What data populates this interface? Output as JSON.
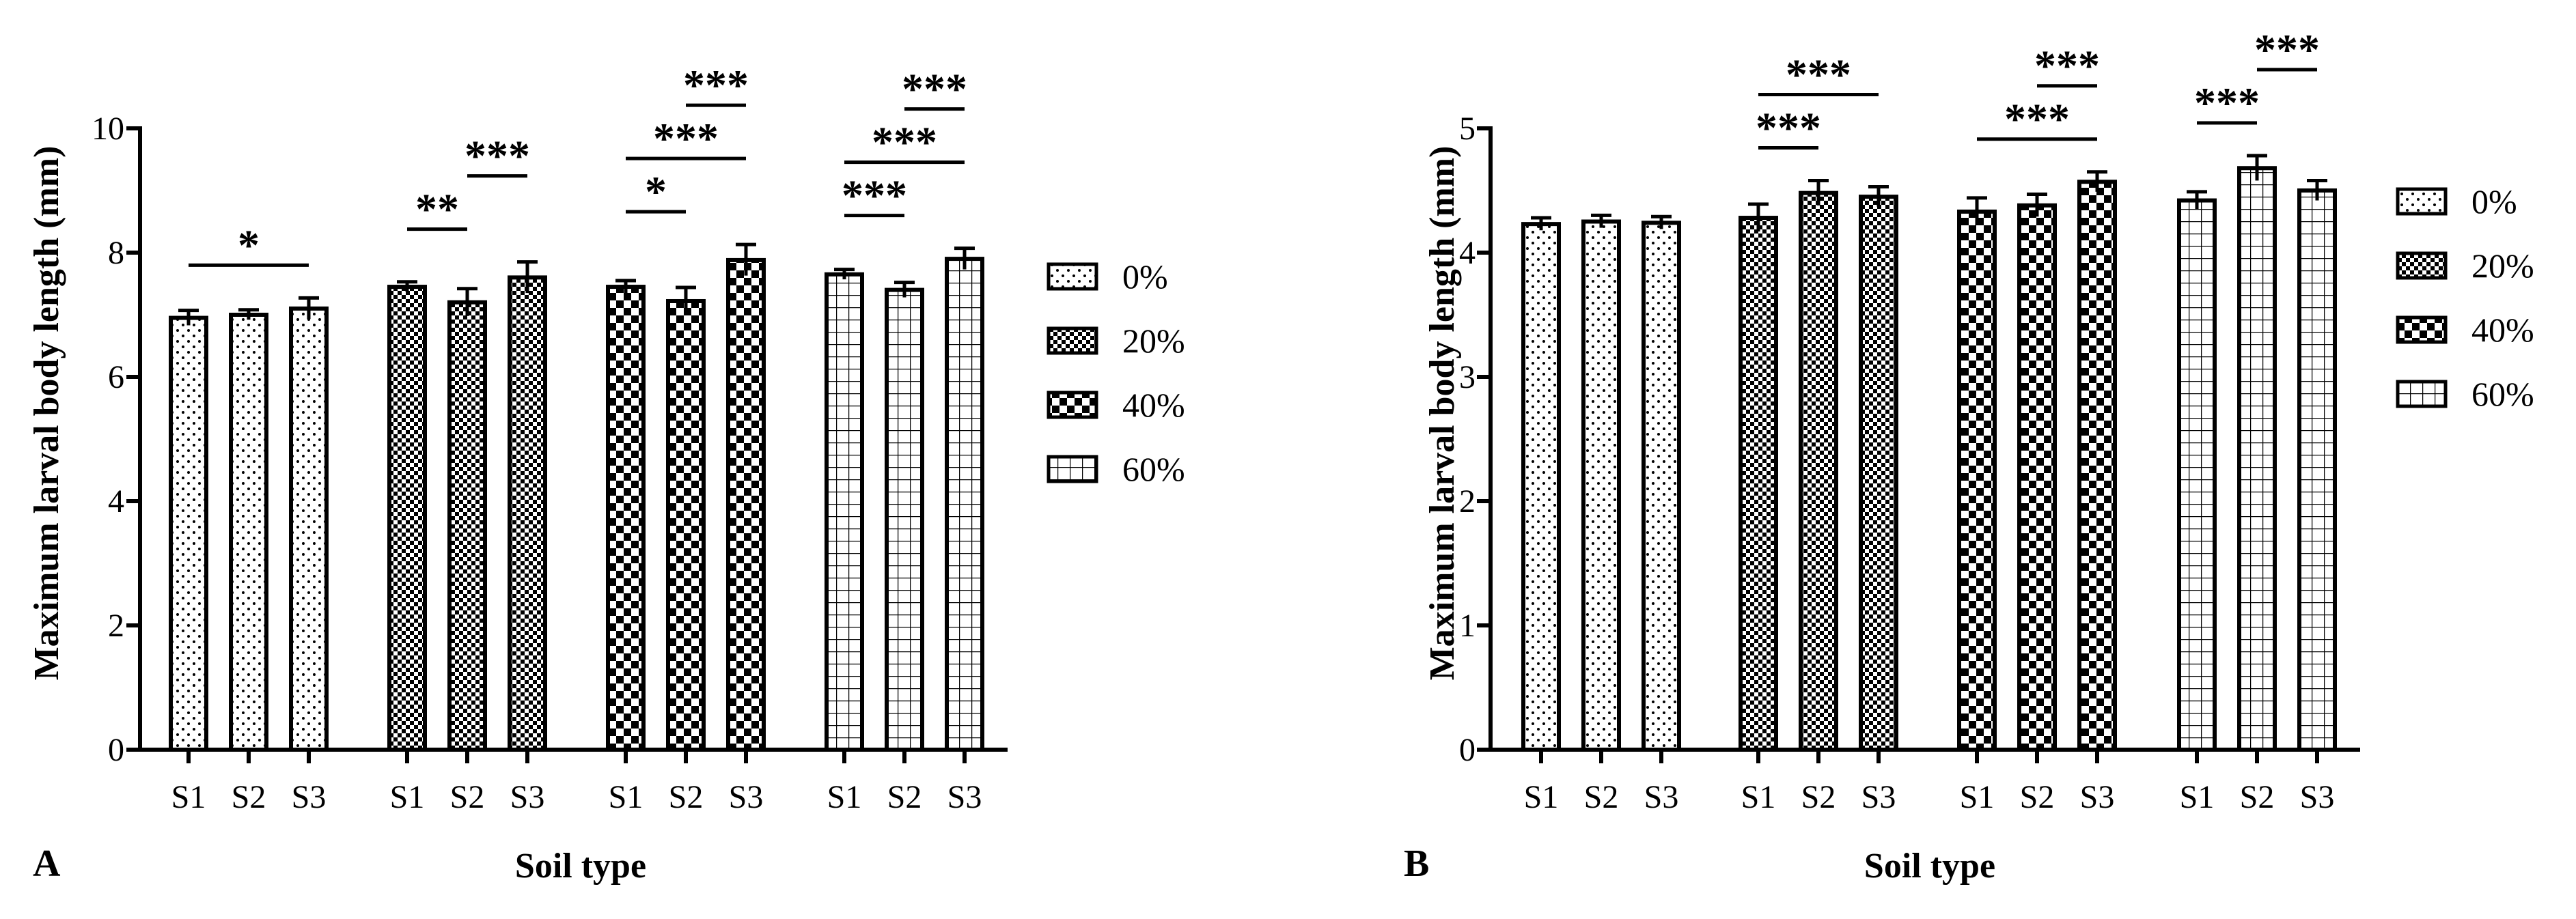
{
  "chart_data": [
    {
      "panel_label": "A",
      "type": "bar",
      "xlabel": "Soil type",
      "ylabel": "Maximum larval body length (mm)",
      "ylim": [
        0,
        10
      ],
      "yticks": [
        0,
        2,
        4,
        6,
        8,
        10
      ],
      "groups": [
        {
          "name": "0%",
          "pattern": "dots",
          "categories": [
            "S1",
            "S2",
            "S3"
          ],
          "values": [
            6.95,
            7.0,
            7.1
          ],
          "errors": [
            0.12,
            0.08,
            0.17
          ],
          "significance": [
            {
              "from": 0,
              "to": 2,
              "label": "*",
              "level": 0
            }
          ]
        },
        {
          "name": "20%",
          "pattern": "checker-small",
          "categories": [
            "S1",
            "S2",
            "S3"
          ],
          "values": [
            7.45,
            7.2,
            7.6
          ],
          "errors": [
            0.08,
            0.22,
            0.25
          ],
          "significance": [
            {
              "from": 0,
              "to": 1,
              "label": "**",
              "level": 0
            },
            {
              "from": 1,
              "to": 2,
              "label": "***",
              "level": 1
            }
          ]
        },
        {
          "name": "40%",
          "pattern": "checker-large",
          "categories": [
            "S1",
            "S2",
            "S3"
          ],
          "values": [
            7.45,
            7.22,
            7.88
          ],
          "errors": [
            0.1,
            0.22,
            0.25
          ],
          "significance": [
            {
              "from": 0,
              "to": 1,
              "label": "*",
              "level": 0
            },
            {
              "from": 0,
              "to": 2,
              "label": "***",
              "level": 1
            },
            {
              "from": 1,
              "to": 2,
              "label": "***",
              "level": 2
            }
          ]
        },
        {
          "name": "60%",
          "pattern": "grid",
          "categories": [
            "S1",
            "S2",
            "S3"
          ],
          "values": [
            7.65,
            7.4,
            7.9
          ],
          "errors": [
            0.08,
            0.12,
            0.17
          ],
          "significance": [
            {
              "from": 0,
              "to": 1,
              "label": "***",
              "level": 0
            },
            {
              "from": 0,
              "to": 2,
              "label": "***",
              "level": 1
            },
            {
              "from": 1,
              "to": 2,
              "label": "***",
              "level": 2
            }
          ]
        }
      ]
    },
    {
      "panel_label": "B",
      "type": "bar",
      "xlabel": "Soil type",
      "ylabel": "Maximum larval body length (mm)",
      "ylim": [
        0,
        5
      ],
      "yticks": [
        0,
        1,
        2,
        3,
        4,
        5
      ],
      "groups": [
        {
          "name": "0%",
          "pattern": "dots",
          "categories": [
            "S1",
            "S2",
            "S3"
          ],
          "values": [
            4.23,
            4.25,
            4.24
          ],
          "errors": [
            0.05,
            0.05,
            0.05
          ],
          "significance": []
        },
        {
          "name": "20%",
          "pattern": "checker-small",
          "categories": [
            "S1",
            "S2",
            "S3"
          ],
          "values": [
            4.28,
            4.48,
            4.45
          ],
          "errors": [
            0.11,
            0.1,
            0.08
          ],
          "significance": [
            {
              "from": 0,
              "to": 1,
              "label": "***",
              "level": 0
            },
            {
              "from": 0,
              "to": 2,
              "label": "***",
              "level": 1
            }
          ]
        },
        {
          "name": "40%",
          "pattern": "checker-large",
          "categories": [
            "S1",
            "S2",
            "S3"
          ],
          "values": [
            4.33,
            4.38,
            4.57
          ],
          "errors": [
            0.11,
            0.09,
            0.08
          ],
          "significance": [
            {
              "from": 0,
              "to": 2,
              "label": "***",
              "level": 0
            },
            {
              "from": 1,
              "to": 2,
              "label": "***",
              "level": 1
            }
          ]
        },
        {
          "name": "60%",
          "pattern": "grid",
          "categories": [
            "S1",
            "S2",
            "S3"
          ],
          "values": [
            4.42,
            4.68,
            4.5
          ],
          "errors": [
            0.07,
            0.1,
            0.08
          ],
          "significance": [
            {
              "from": 0,
              "to": 1,
              "label": "***",
              "level": 0
            },
            {
              "from": 1,
              "to": 2,
              "label": "***",
              "level": 1
            }
          ]
        }
      ]
    }
  ],
  "legend": [
    {
      "label": "0%",
      "pattern": "dots"
    },
    {
      "label": "20%",
      "pattern": "checker-small"
    },
    {
      "label": "40%",
      "pattern": "checker-large"
    },
    {
      "label": "60%",
      "pattern": "grid"
    }
  ],
  "colors": {
    "stroke": "#000000",
    "background": "#ffffff"
  }
}
